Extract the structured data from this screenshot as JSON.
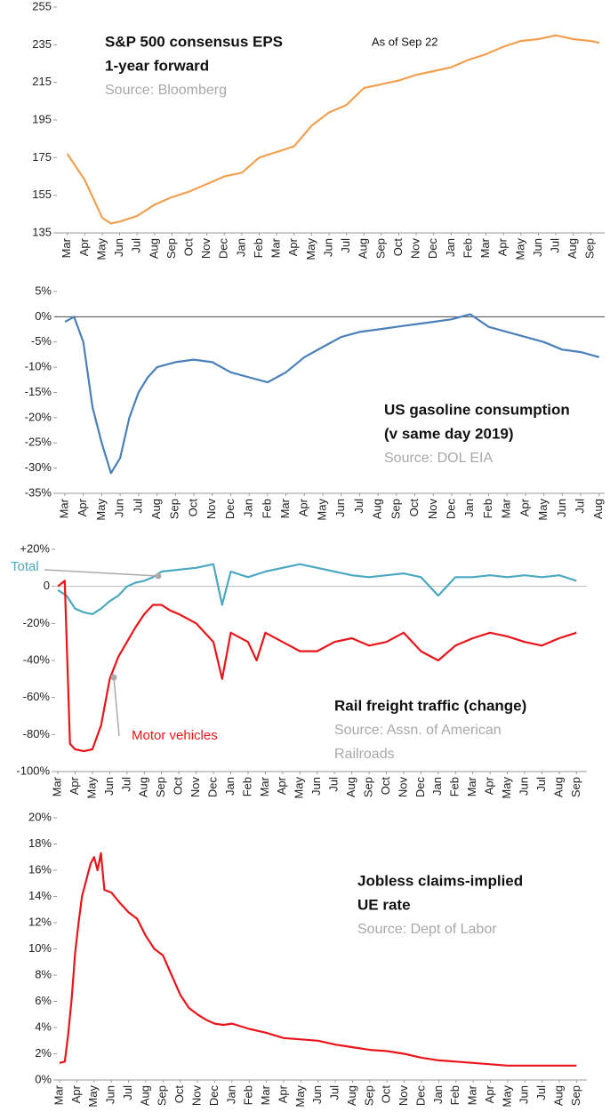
{
  "chart_data": [
    {
      "type": "line",
      "title": [
        "S&P 500 consensus EPS",
        "1-year forward"
      ],
      "source": [
        "Source: Bloomberg"
      ],
      "annotation": "As of Sep 22",
      "color": "#f0a050",
      "x": [
        0,
        1,
        2,
        2.5,
        3,
        4,
        5,
        6,
        7,
        8,
        9,
        10,
        11,
        12,
        13,
        14,
        15,
        16,
        17,
        18,
        19,
        20,
        21,
        22,
        23,
        24,
        25,
        26,
        27,
        28,
        29,
        30,
        30.5
      ],
      "values": [
        177,
        163,
        143,
        140,
        141,
        144,
        150,
        154,
        157,
        161,
        165,
        167,
        175,
        178,
        181,
        192,
        199,
        203,
        212,
        214,
        216,
        219,
        221,
        223,
        227,
        230,
        234,
        237,
        238,
        240,
        238,
        237,
        236
      ],
      "xlim": [
        -0.7,
        30.8
      ],
      "xticks": [
        {
          "value": 0,
          "label": "Mar"
        },
        {
          "value": 1,
          "label": "Apr"
        },
        {
          "value": 2,
          "label": "May"
        },
        {
          "value": 3,
          "label": "Jun"
        },
        {
          "value": 4,
          "label": "Jul"
        },
        {
          "value": 5,
          "label": "Aug"
        },
        {
          "value": 6,
          "label": "Sep"
        },
        {
          "value": 7,
          "label": "Oct"
        },
        {
          "value": 8,
          "label": "Nov"
        },
        {
          "value": 9,
          "label": "Dec"
        },
        {
          "value": 10,
          "label": "Jan"
        },
        {
          "value": 11,
          "label": "Feb"
        },
        {
          "value": 12,
          "label": "Mar"
        },
        {
          "value": 13,
          "label": "Apr"
        },
        {
          "value": 14,
          "label": "May"
        },
        {
          "value": 15,
          "label": "Jun"
        },
        {
          "value": 16,
          "label": "Jul"
        },
        {
          "value": 17,
          "label": "Aug"
        },
        {
          "value": 18,
          "label": "Sep"
        },
        {
          "value": 19,
          "label": "Oct"
        },
        {
          "value": 20,
          "label": "Nov"
        },
        {
          "value": 21,
          "label": "Dec"
        },
        {
          "value": 22,
          "label": "Jan"
        },
        {
          "value": 23,
          "label": "Feb"
        },
        {
          "value": 24,
          "label": "Mar"
        },
        {
          "value": 25,
          "label": "Apr"
        },
        {
          "value": 26,
          "label": "May"
        },
        {
          "value": 27,
          "label": "Jun"
        },
        {
          "value": 28,
          "label": "Jul"
        },
        {
          "value": 29,
          "label": "Aug"
        },
        {
          "value": 30,
          "label": "Sep"
        }
      ],
      "ylim": [
        135,
        255
      ],
      "yticks": [
        135,
        155,
        175,
        195,
        215,
        235,
        255
      ]
    },
    {
      "type": "line",
      "title": [
        "US gasoline consumption",
        "(v same day 2019)"
      ],
      "source": [
        "Source: DOL EIA"
      ],
      "color": "#4a7fb8",
      "zero_line": true,
      "x": [
        0,
        0.5,
        1,
        1.5,
        2,
        2.5,
        3,
        3.5,
        4,
        4.5,
        5,
        6,
        7,
        8,
        9,
        10,
        11,
        12,
        13,
        14,
        15,
        16,
        17,
        18,
        19,
        20,
        21,
        22,
        23,
        24,
        25,
        26,
        27,
        28,
        29
      ],
      "values": [
        -1,
        0,
        -5,
        -18,
        -25,
        -31,
        -28,
        -20,
        -15,
        -12,
        -10,
        -9,
        -8.5,
        -9,
        -11,
        -12,
        -13,
        -11,
        -8,
        -6,
        -4,
        -3,
        -2.5,
        -2,
        -1.5,
        -1,
        -0.5,
        0.5,
        -2,
        -3,
        -4,
        -5,
        -6.5,
        -7,
        -8
      ],
      "xlim": [
        -0.53,
        29.3
      ],
      "xticks": [
        {
          "value": 0,
          "label": "Mar"
        },
        {
          "value": 1,
          "label": "Apr"
        },
        {
          "value": 2,
          "label": "May"
        },
        {
          "value": 3,
          "label": "Jun"
        },
        {
          "value": 4,
          "label": "Jul"
        },
        {
          "value": 5,
          "label": "Aug"
        },
        {
          "value": 6,
          "label": "Sep"
        },
        {
          "value": 7,
          "label": "Oct"
        },
        {
          "value": 8,
          "label": "Nov"
        },
        {
          "value": 9,
          "label": "Dec"
        },
        {
          "value": 10,
          "label": "Jan"
        },
        {
          "value": 11,
          "label": "Feb"
        },
        {
          "value": 12,
          "label": "Mar"
        },
        {
          "value": 13,
          "label": "Apr"
        },
        {
          "value": 14,
          "label": "May"
        },
        {
          "value": 15,
          "label": "Jun"
        },
        {
          "value": 16,
          "label": "Jul"
        },
        {
          "value": 17,
          "label": "Aug"
        },
        {
          "value": 18,
          "label": "Sep"
        },
        {
          "value": 19,
          "label": "Oct"
        },
        {
          "value": 20,
          "label": "Nov"
        },
        {
          "value": 21,
          "label": "Dec"
        },
        {
          "value": 22,
          "label": "Jan"
        },
        {
          "value": 23,
          "label": "Feb"
        },
        {
          "value": 24,
          "label": "Mar"
        },
        {
          "value": 25,
          "label": "Apr"
        },
        {
          "value": 26,
          "label": "May"
        },
        {
          "value": 27,
          "label": "Jun"
        },
        {
          "value": 28,
          "label": "Jul"
        },
        {
          "value": 29,
          "label": "Aug"
        }
      ],
      "ylim": [
        -35,
        5
      ],
      "yticks": [
        {
          "value": 5,
          "label": "5%"
        },
        {
          "value": 0,
          "label": "0%"
        },
        {
          "value": -5,
          "label": "-5%"
        },
        {
          "value": -10,
          "label": "-10%"
        },
        {
          "value": -15,
          "label": "-15%"
        },
        {
          "value": -20,
          "label": "-20%"
        },
        {
          "value": -25,
          "label": "-25%"
        },
        {
          "value": -30,
          "label": "-30%"
        },
        {
          "value": -35,
          "label": "-35%"
        }
      ]
    },
    {
      "type": "line",
      "title": [
        "Rail freight traffic (change)"
      ],
      "source": [
        "Source: Assn. of American",
        "Railroads"
      ],
      "zero_line": true,
      "series": [
        {
          "name": "Total",
          "color": "#4aa8c0",
          "x": [
            0,
            0.5,
            1,
            1.5,
            2,
            2.5,
            3,
            3.5,
            4,
            4.5,
            5,
            5.5,
            6,
            7,
            8,
            9,
            9.5,
            10,
            11,
            12,
            13,
            14,
            15,
            16,
            17,
            18,
            19,
            20,
            21,
            22,
            23,
            24,
            25,
            26,
            27,
            28,
            29,
            30
          ],
          "values": [
            -2,
            -5,
            -12,
            -14,
            -15,
            -12,
            -8,
            -5,
            0,
            2,
            3,
            5,
            8,
            9,
            10,
            12,
            -10,
            8,
            5,
            8,
            10,
            12,
            10,
            8,
            6,
            5,
            6,
            7,
            5,
            -5,
            5,
            5,
            6,
            5,
            6,
            5,
            6,
            3
          ]
        },
        {
          "name": "Motor vehicles",
          "color": "#e8141a",
          "x": [
            0,
            0.4,
            0.7,
            1,
            1.5,
            2,
            2.5,
            3,
            3.5,
            4,
            4.5,
            5,
            5.5,
            6,
            6.5,
            7,
            8,
            8.5,
            9,
            9.5,
            10,
            11,
            11.5,
            12,
            13,
            14,
            15,
            16,
            17,
            18,
            19,
            20,
            21,
            22,
            23,
            24,
            25,
            26,
            27,
            28,
            29,
            30
          ],
          "values": [
            0,
            3,
            -85,
            -88,
            -89,
            -88,
            -75,
            -50,
            -38,
            -30,
            -22,
            -15,
            -10,
            -10,
            -13,
            -15,
            -20,
            -25,
            -30,
            -50,
            -25,
            -30,
            -40,
            -25,
            -30,
            -35,
            -35,
            -30,
            -28,
            -32,
            -30,
            -25,
            -35,
            -40,
            -32,
            -28,
            -25,
            -27,
            -30,
            -32,
            -28,
            -25
          ]
        }
      ],
      "xlim": [
        -0.26,
        30.6
      ],
      "xticks": [
        {
          "value": 0,
          "label": "Mar"
        },
        {
          "value": 1,
          "label": "Apr"
        },
        {
          "value": 2,
          "label": "May"
        },
        {
          "value": 3,
          "label": "Jun"
        },
        {
          "value": 4,
          "label": "Jul"
        },
        {
          "value": 5,
          "label": "Aug"
        },
        {
          "value": 6,
          "label": "Sep"
        },
        {
          "value": 7,
          "label": "Oct"
        },
        {
          "value": 8,
          "label": "Nov"
        },
        {
          "value": 9,
          "label": "Dec"
        },
        {
          "value": 10,
          "label": "Jan"
        },
        {
          "value": 11,
          "label": "Feb"
        },
        {
          "value": 12,
          "label": "Mar"
        },
        {
          "value": 13,
          "label": "Apr"
        },
        {
          "value": 14,
          "label": "May"
        },
        {
          "value": 15,
          "label": "Jun"
        },
        {
          "value": 16,
          "label": "Jul"
        },
        {
          "value": 17,
          "label": "Aug"
        },
        {
          "value": 18,
          "label": "Sep"
        },
        {
          "value": 19,
          "label": "Oct"
        },
        {
          "value": 20,
          "label": "Nov"
        },
        {
          "value": 21,
          "label": "Dec"
        },
        {
          "value": 22,
          "label": "Jan"
        },
        {
          "value": 23,
          "label": "Feb"
        },
        {
          "value": 24,
          "label": "Mar"
        },
        {
          "value": 25,
          "label": "Apr"
        },
        {
          "value": 26,
          "label": "May"
        },
        {
          "value": 27,
          "label": "Jun"
        },
        {
          "value": 28,
          "label": "Jul"
        },
        {
          "value": 29,
          "label": "Aug"
        },
        {
          "value": 30,
          "label": "Sep"
        }
      ],
      "ylim": [
        -100,
        20
      ],
      "yticks": [
        {
          "value": 20,
          "label": "+20%"
        },
        0,
        {
          "value": -20,
          "label": "-20%"
        },
        {
          "value": -40,
          "label": "-40%"
        },
        {
          "value": -60,
          "label": "-60%"
        },
        {
          "value": -80,
          "label": "-80%"
        },
        {
          "value": -100,
          "label": "-100%"
        }
      ]
    },
    {
      "type": "line",
      "title": [
        "Jobless claims-implied",
        "UE rate"
      ],
      "source": [
        "Source: Dept of Labor"
      ],
      "color": "#e8141a",
      "x": [
        0,
        0.3,
        0.5,
        0.7,
        0.9,
        1.1,
        1.3,
        1.6,
        1.8,
        2,
        2.2,
        2.4,
        2.6,
        3,
        3.5,
        4,
        4.5,
        5,
        5.5,
        6,
        6.5,
        7,
        7.5,
        8,
        8.5,
        9,
        9.5,
        10,
        10.5,
        11,
        12,
        13,
        14,
        15,
        16,
        17,
        18,
        19,
        20,
        21,
        22,
        23,
        24,
        25,
        26,
        27,
        28,
        29,
        30
      ],
      "values": [
        1.3,
        1.4,
        3.5,
        6.2,
        9.7,
        12,
        14,
        15.5,
        16.5,
        17,
        16,
        17.3,
        14.5,
        14.3,
        13.5,
        12.8,
        12.3,
        11,
        10,
        9.5,
        8,
        6.5,
        5.5,
        5,
        4.6,
        4.3,
        4.2,
        4.3,
        4.1,
        3.9,
        3.6,
        3.2,
        3.1,
        3,
        2.7,
        2.5,
        2.3,
        2.2,
        2,
        1.7,
        1.5,
        1.4,
        1.3,
        1.2,
        1.1,
        1.1,
        1.1,
        1.1,
        1.1
      ],
      "xlim": [
        -0.26,
        30.6
      ],
      "xticks": [
        {
          "value": 0,
          "label": "Mar"
        },
        {
          "value": 1,
          "label": "Apr"
        },
        {
          "value": 2,
          "label": "May"
        },
        {
          "value": 3,
          "label": "Jun"
        },
        {
          "value": 4,
          "label": "Jul"
        },
        {
          "value": 5,
          "label": "Aug"
        },
        {
          "value": 6,
          "label": "Sep"
        },
        {
          "value": 7,
          "label": "Oct"
        },
        {
          "value": 8,
          "label": "Nov"
        },
        {
          "value": 9,
          "label": "Dec"
        },
        {
          "value": 10,
          "label": "Jan"
        },
        {
          "value": 11,
          "label": "Feb"
        },
        {
          "value": 12,
          "label": "Mar"
        },
        {
          "value": 13,
          "label": "Apr"
        },
        {
          "value": 14,
          "label": "May"
        },
        {
          "value": 15,
          "label": "Jun"
        },
        {
          "value": 16,
          "label": "Jul"
        },
        {
          "value": 17,
          "label": "Aug"
        },
        {
          "value": 18,
          "label": "Sep"
        },
        {
          "value": 19,
          "label": "Oct"
        },
        {
          "value": 20,
          "label": "Nov"
        },
        {
          "value": 21,
          "label": "Dec"
        },
        {
          "value": 22,
          "label": "Jan"
        },
        {
          "value": 23,
          "label": "Feb"
        },
        {
          "value": 24,
          "label": "Mar"
        },
        {
          "value": 25,
          "label": "Apr"
        },
        {
          "value": 26,
          "label": "May"
        },
        {
          "value": 27,
          "label": "Jun"
        },
        {
          "value": 28,
          "label": "Jul"
        },
        {
          "value": 29,
          "label": "Aug"
        },
        {
          "value": 30,
          "label": "Sep"
        }
      ],
      "ylim": [
        0,
        20
      ],
      "yticks": [
        {
          "value": 0,
          "label": "0%"
        },
        {
          "value": 2,
          "label": "2%"
        },
        {
          "value": 4,
          "label": "4%"
        },
        {
          "value": 6,
          "label": "6%"
        },
        {
          "value": 8,
          "label": "8%"
        },
        {
          "value": 10,
          "label": "10%"
        },
        {
          "value": 12,
          "label": "12%"
        },
        {
          "value": 14,
          "label": "14%"
        },
        {
          "value": 16,
          "label": "16%"
        },
        {
          "value": 18,
          "label": "18%"
        },
        {
          "value": 20,
          "label": "20%"
        }
      ]
    }
  ]
}
